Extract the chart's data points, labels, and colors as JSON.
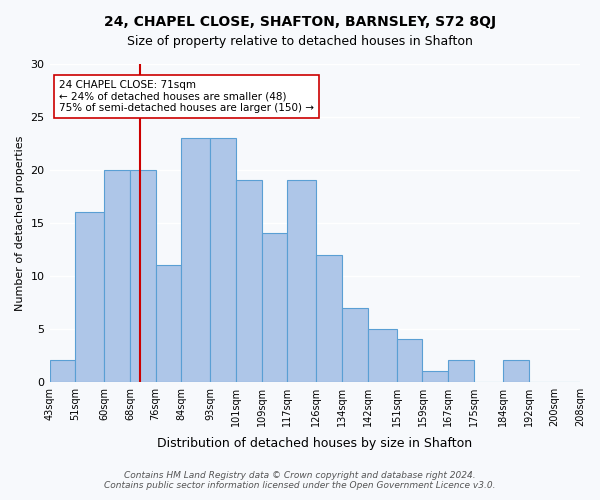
{
  "title": "24, CHAPEL CLOSE, SHAFTON, BARNSLEY, S72 8QJ",
  "subtitle": "Size of property relative to detached houses in Shafton",
  "xlabel": "Distribution of detached houses by size in Shafton",
  "ylabel": "Number of detached properties",
  "bin_edges": [
    43,
    51,
    60,
    68,
    76,
    84,
    93,
    101,
    109,
    117,
    126,
    134,
    142,
    151,
    159,
    167,
    175,
    184,
    192,
    200,
    208
  ],
  "bin_labels": [
    "43sqm",
    "51sqm",
    "60sqm",
    "68sqm",
    "76sqm",
    "84sqm",
    "93sqm",
    "101sqm",
    "109sqm",
    "117sqm",
    "126sqm",
    "134sqm",
    "142sqm",
    "151sqm",
    "159sqm",
    "167sqm",
    "175sqm",
    "184sqm",
    "192sqm",
    "200sqm",
    "208sqm"
  ],
  "counts": [
    2,
    16,
    20,
    20,
    11,
    23,
    23,
    19,
    14,
    19,
    12,
    7,
    5,
    4,
    1,
    2,
    0,
    2,
    0,
    0
  ],
  "bar_color": "#aec6e8",
  "bar_edge_color": "#5a9fd4",
  "property_size": 71,
  "vline_x": 71,
  "vline_color": "#cc0000",
  "annotation_text": "24 CHAPEL CLOSE: 71sqm\n← 24% of detached houses are smaller (48)\n75% of semi-detached houses are larger (150) →",
  "annotation_box_color": "#ffffff",
  "annotation_box_edge": "#cc0000",
  "ylim": [
    0,
    30
  ],
  "yticks": [
    0,
    5,
    10,
    15,
    20,
    25,
    30
  ],
  "footer_line1": "Contains HM Land Registry data © Crown copyright and database right 2024.",
  "footer_line2": "Contains public sector information licensed under the Open Government Licence v3.0.",
  "bg_color": "#f7f9fc"
}
